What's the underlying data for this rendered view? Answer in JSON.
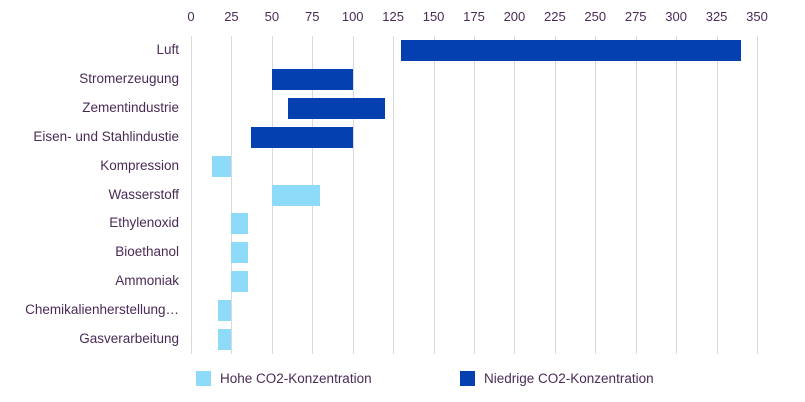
{
  "chart_data": {
    "type": "bar",
    "variant": "horizontal-range-bars",
    "title": "",
    "xlabel": "",
    "ylabel": "",
    "axis": {
      "position": "top",
      "min": 0,
      "max": 350,
      "tick_step": 25,
      "tick_labels": [
        "0",
        "25",
        "50",
        "75",
        "100",
        "125",
        "150",
        "175",
        "200",
        "225",
        "250",
        "275",
        "300",
        "325",
        "350"
      ],
      "grid": true,
      "gridline_color": "#D9D9D9"
    },
    "categories": [
      "Luft",
      "Stromerzeugung",
      "Zementindustrie",
      "Eisen- und Stahlindustie",
      "Kompression",
      "Wasserstoff",
      "Ethylenoxid",
      "Bioethanol",
      "Ammoniak",
      "Chemikalienherstellung…",
      "Gasverarbeitung"
    ],
    "bars": [
      {
        "category": "Luft",
        "from": 130,
        "to": 340,
        "series": "Niedrige CO2-Konzentration"
      },
      {
        "category": "Stromerzeugung",
        "from": 50,
        "to": 100,
        "series": "Niedrige CO2-Konzentration"
      },
      {
        "category": "Zementindustrie",
        "from": 60,
        "to": 120,
        "series": "Niedrige CO2-Konzentration"
      },
      {
        "category": "Eisen- und Stahlindustie",
        "from": 37,
        "to": 100,
        "series": "Niedrige CO2-Konzentration"
      },
      {
        "category": "Kompression",
        "from": 13,
        "to": 25,
        "series": "Hohe CO2-Konzentration"
      },
      {
        "category": "Wasserstoff",
        "from": 50,
        "to": 80,
        "series": "Hohe CO2-Konzentration"
      },
      {
        "category": "Ethylenoxid",
        "from": 25,
        "to": 35,
        "series": "Hohe CO2-Konzentration"
      },
      {
        "category": "Bioethanol",
        "from": 25,
        "to": 35,
        "series": "Hohe CO2-Konzentration"
      },
      {
        "category": "Ammoniak",
        "from": 25,
        "to": 35,
        "series": "Hohe CO2-Konzentration"
      },
      {
        "category": "Chemikalienherstellung…",
        "from": 17,
        "to": 25,
        "series": "Hohe CO2-Konzentration"
      },
      {
        "category": "Gasverarbeitung",
        "from": 17,
        "to": 25,
        "series": "Hohe CO2-Konzentration"
      }
    ],
    "legend": {
      "position": "bottom",
      "items": [
        {
          "label": "Hohe CO2-Konzentration",
          "color": "#8DDBF8"
        },
        {
          "label": "Niedrige CO2-Konzentration",
          "color": "#0540B0"
        }
      ]
    }
  },
  "colors": {
    "series_high_concentration": "#8DDBF8",
    "series_low_concentration": "#0540B0",
    "text": "#4A2B57",
    "gridline": "#D9D9D9",
    "background": "#FFFFFF"
  }
}
